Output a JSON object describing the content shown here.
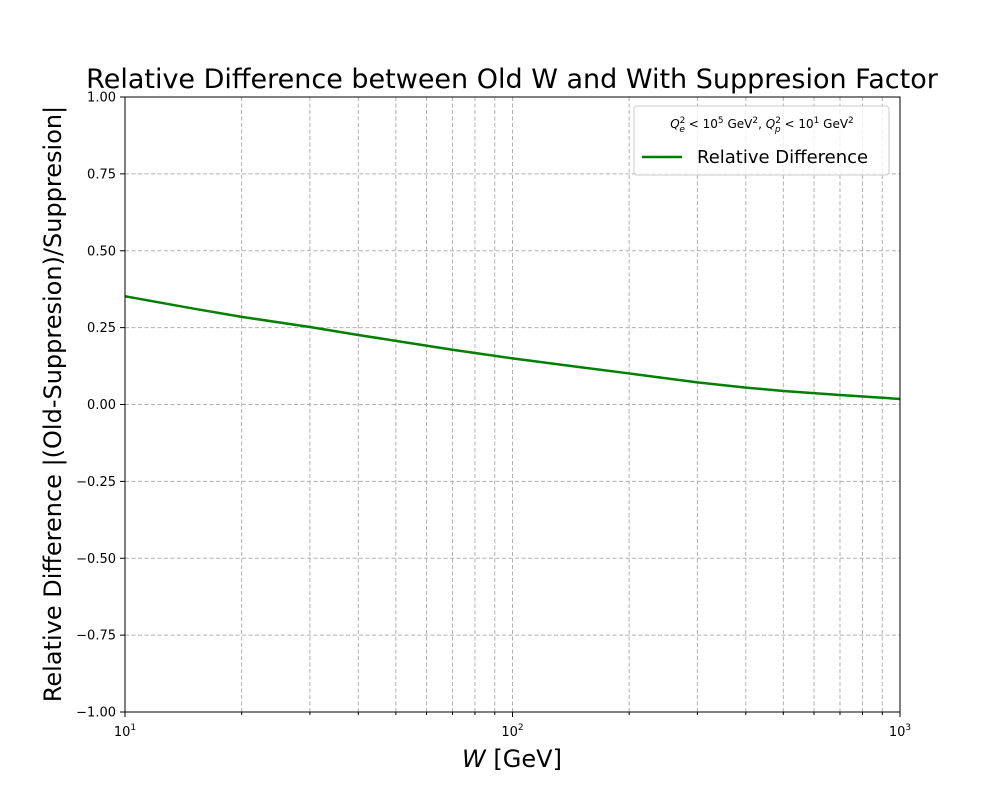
{
  "chart_data": {
    "type": "line",
    "title": "Relative Difference between Old W and With Suppresion Factor",
    "xlabel_symbol": "W",
    "xlabel_unit": "[GeV]",
    "ylabel": "Relative Difference |(Old-Suppresion)/Suppresion|",
    "x_scale": "log",
    "xlim": [
      10,
      1000
    ],
    "ylim": [
      -1.0,
      1.0
    ],
    "x_ticks": [
      {
        "base": "10",
        "exp": "1"
      },
      {
        "base": "10",
        "exp": "2"
      },
      {
        "base": "10",
        "exp": "3"
      }
    ],
    "y_ticks": [
      "−1.00",
      "−0.75",
      "−0.50",
      "−0.25",
      "0.00",
      "0.25",
      "0.50",
      "0.75",
      "1.00"
    ],
    "grid": true,
    "legend_position": "top-right",
    "legend_title": {
      "q1_sym": "Q",
      "q1_sup": "2",
      "q1_sub": "e",
      "lt1": " < 10",
      "exp1": "5",
      "unit1": " GeV",
      "unit1_sup": "2",
      "sep": ", ",
      "q2_sym": "Q",
      "q2_sup": "2",
      "q2_sub": "p",
      "lt2": " < 10",
      "exp2": "1",
      "unit2": " GeV",
      "unit2_sup": "2"
    },
    "series": [
      {
        "name": "Relative Difference",
        "color": "#008000",
        "x": [
          10,
          15,
          20,
          30,
          40,
          50,
          70,
          100,
          150,
          200,
          300,
          400,
          500,
          700,
          1000
        ],
        "y": [
          0.352,
          0.312,
          0.285,
          0.252,
          0.226,
          0.207,
          0.178,
          0.15,
          0.121,
          0.101,
          0.072,
          0.055,
          0.044,
          0.031,
          0.018
        ]
      }
    ]
  }
}
